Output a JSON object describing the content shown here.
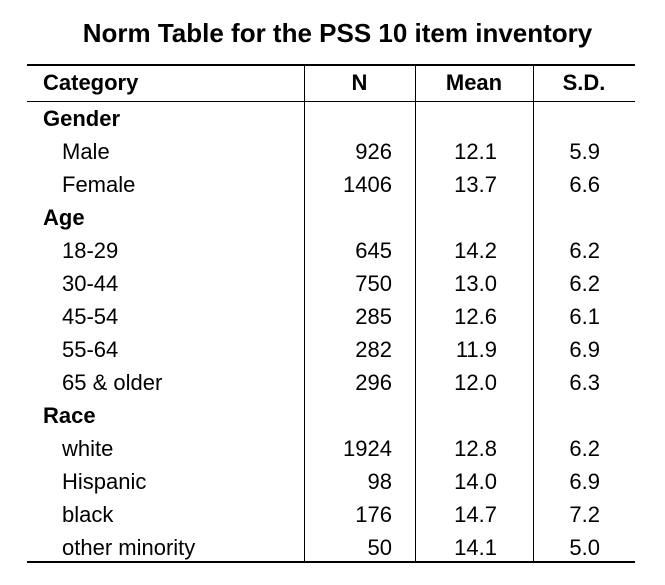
{
  "title": "Norm Table for the PSS 10 item inventory",
  "columns": [
    "Category",
    "N",
    "Mean",
    "S.D."
  ],
  "groups": [
    {
      "name": "Gender",
      "rows": [
        {
          "label": "Male",
          "n": "926",
          "mean": "12.1",
          "sd": "5.9"
        },
        {
          "label": "Female",
          "n": "1406",
          "mean": "13.7",
          "sd": "6.6"
        }
      ]
    },
    {
      "name": "Age",
      "rows": [
        {
          "label": "18-29",
          "n": "645",
          "mean": "14.2",
          "sd": "6.2"
        },
        {
          "label": "30-44",
          "n": "750",
          "mean": "13.0",
          "sd": "6.2"
        },
        {
          "label": "45-54",
          "n": "285",
          "mean": "12.6",
          "sd": "6.1"
        },
        {
          "label": "55-64",
          "n": "282",
          "mean": "11.9",
          "sd": "6.9"
        },
        {
          "label": "65 & older",
          "n": "296",
          "mean": "12.0",
          "sd": "6.3"
        }
      ]
    },
    {
      "name": "Race",
      "rows": [
        {
          "label": "white",
          "n": "1924",
          "mean": "12.8",
          "sd": "6.2"
        },
        {
          "label": "Hispanic",
          "n": "98",
          "mean": "14.0",
          "sd": "6.9"
        },
        {
          "label": "black",
          "n": "176",
          "mean": "14.7",
          "sd": "7.2"
        },
        {
          "label": "other minority",
          "n": "50",
          "mean": "14.1",
          "sd": "5.0"
        }
      ]
    }
  ]
}
